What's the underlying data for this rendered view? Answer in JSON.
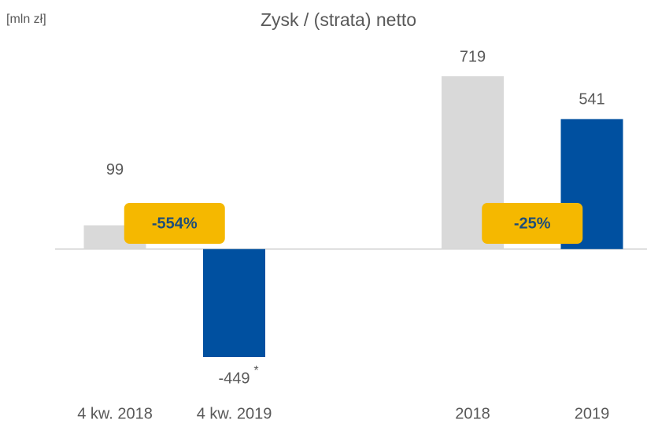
{
  "chart_data": {
    "type": "bar",
    "title": "Zysk / (strata) netto",
    "unit_label": "[mln zł]",
    "categories": [
      "4 kw. 2018",
      "4 kw. 2019",
      null,
      "2018",
      "2019"
    ],
    "values": [
      99,
      -449,
      null,
      719,
      541
    ],
    "colors": [
      "#d9d9d9",
      "#0050a0",
      null,
      "#d9d9d9",
      "#0050a0"
    ],
    "value_notes": [
      null,
      "*",
      null,
      null,
      null
    ],
    "annotations": [
      {
        "text": "-554%",
        "between": [
          0,
          1
        ]
      },
      {
        "text": "-25%",
        "between": [
          3,
          4
        ]
      }
    ],
    "annotation_color": "#f5b800",
    "annotation_text_color": "#1f4e79"
  }
}
